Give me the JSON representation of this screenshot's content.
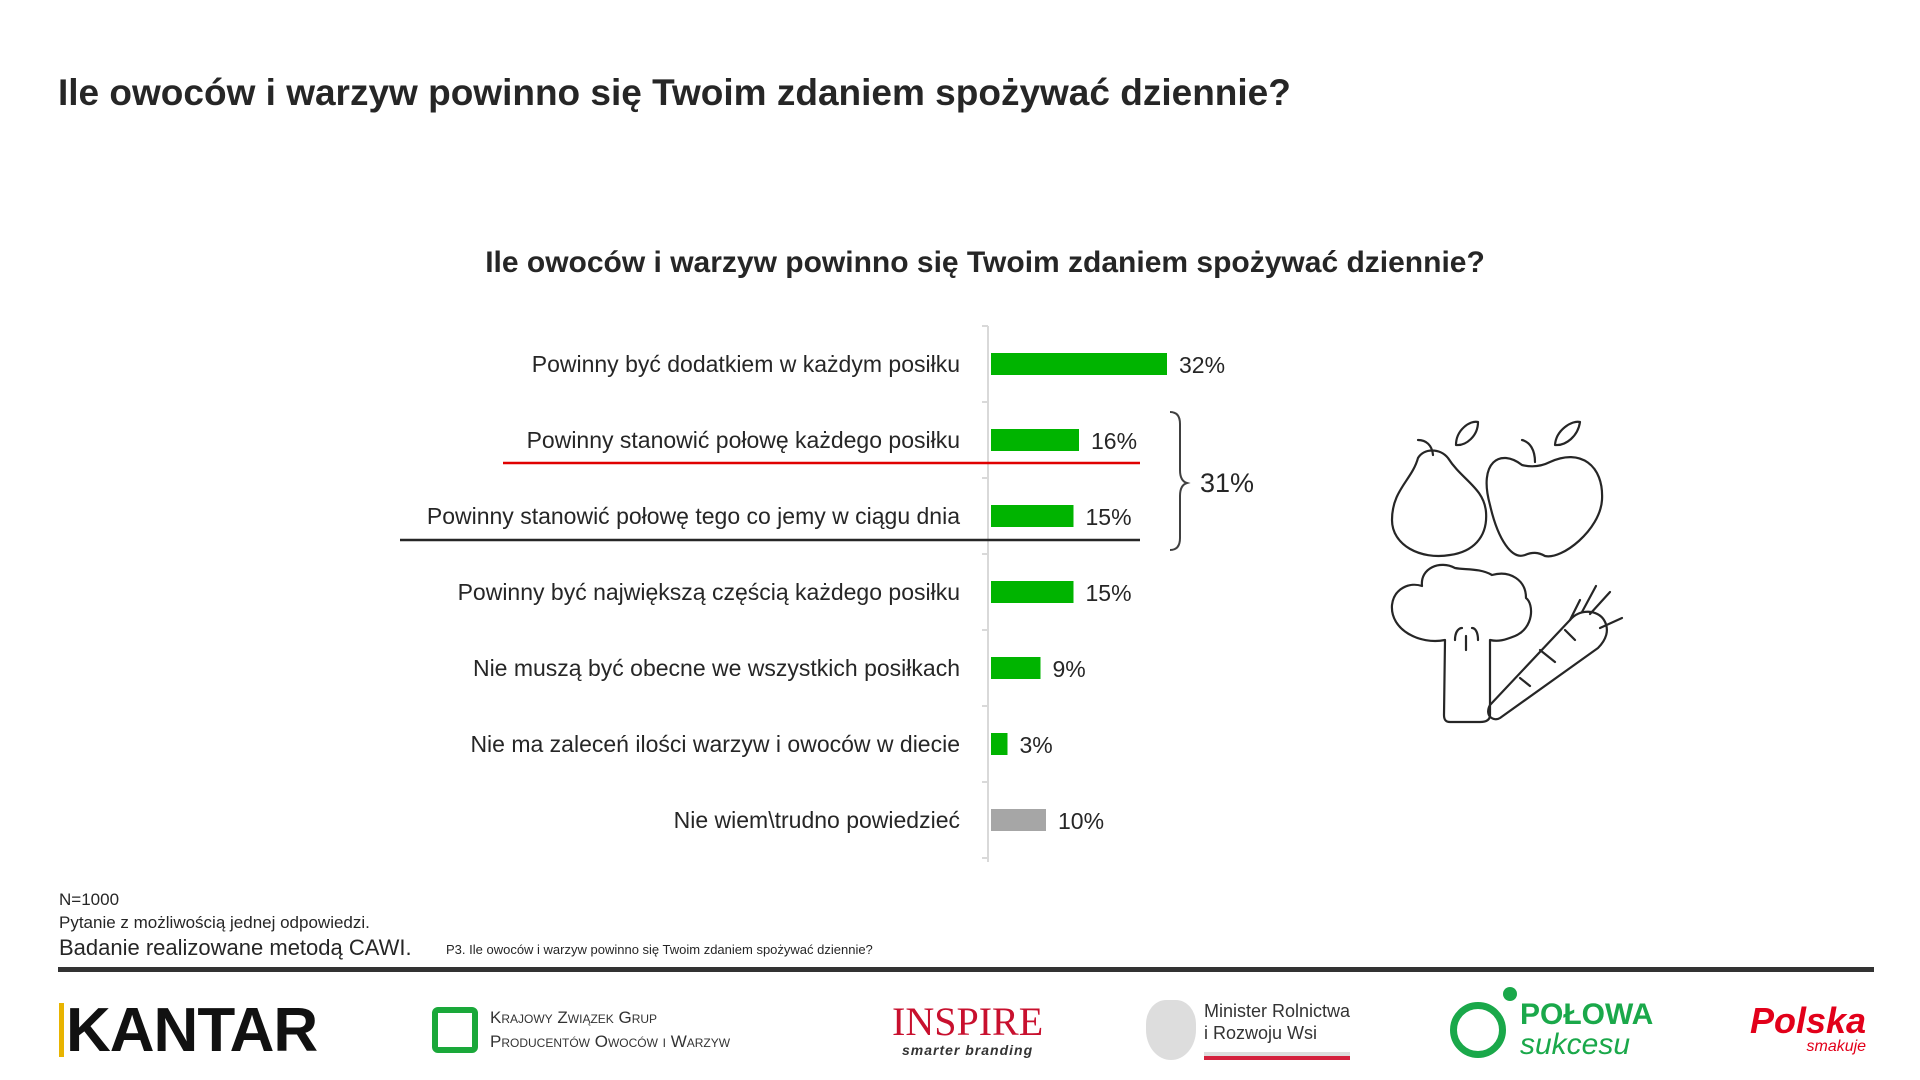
{
  "header": {
    "title": "Ile owoców i warzyw powinno się Twoim zdaniem spożywać dziennie?"
  },
  "chart_data": {
    "type": "bar",
    "orientation": "horizontal",
    "title": "Ile owoców i warzyw powinno się Twoim zdaniem spożywać dziennie?",
    "categories": [
      "Powinny być dodatkiem w każdym posiłku",
      "Powinny stanowić połowę każdego posiłku",
      "Powinny stanowić połowę tego co jemy w ciągu dnia",
      "Powinny być największą częścią każdego posiłku",
      "Nie muszą być obecne we wszystkich posiłkach",
      "Nie ma zaleceń ilości warzyw i owoców w diecie",
      "Nie wiem\\trudno powiedzieć"
    ],
    "values": [
      32,
      16,
      15,
      15,
      9,
      3,
      10
    ],
    "value_labels": [
      "32%",
      "16%",
      "15%",
      "15%",
      "9%",
      "3%",
      "10%"
    ],
    "unit": "%",
    "colors": [
      "#00b400",
      "#00b400",
      "#00b400",
      "#00b400",
      "#00b400",
      "#00b400",
      "#a6a6a6"
    ],
    "grid": false,
    "annotation": {
      "label": "31%",
      "brace_categories": [
        1,
        2
      ]
    },
    "highlight_lines": {
      "red": "#e00000",
      "black": "#262626"
    }
  },
  "footer": {
    "sample": "N=1000",
    "note": "Pytanie z możliwością jednej odpowiedzi.",
    "method": "Badanie realizowane metodą CAWI.",
    "question_ref": "P3. Ile owoców i warzyw powinno się Twoim zdaniem spożywać dziennie?"
  },
  "logos": {
    "kantar": "KANTAR",
    "kzgppowiw_line1": "Krajowy Związek Grup",
    "kzgppowiw_line2": "Producentów Owoców i Warzyw",
    "inspire": "INSPIRE",
    "inspire_tagline": "smarter branding",
    "ministry_line1": "Minister Rolnictwa",
    "ministry_line2": "i Rozwoju Wsi",
    "polowa": "POŁOWA",
    "polowa_sub": "sukcesu",
    "polska": "Polska",
    "polska_sub": "smakuje"
  }
}
